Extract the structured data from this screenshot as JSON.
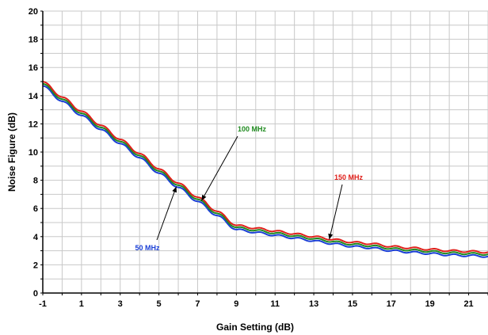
{
  "chart_data": {
    "type": "line",
    "title": "",
    "xlabel": "Gain Setting (dB)",
    "ylabel": "Noise Figure (dB)",
    "xlim": [
      -1,
      22
    ],
    "ylim": [
      0,
      20
    ],
    "x_ticks": [
      -1,
      1,
      3,
      5,
      7,
      9,
      11,
      13,
      15,
      17,
      19,
      21
    ],
    "y_ticks": [
      0,
      2,
      4,
      6,
      8,
      10,
      12,
      14,
      16,
      18,
      20
    ],
    "grid": true,
    "x": [
      -1,
      0,
      1,
      2,
      3,
      4,
      5,
      6,
      7,
      8,
      9,
      10,
      11,
      12,
      13,
      14,
      15,
      16,
      17,
      18,
      19,
      20,
      21,
      22
    ],
    "series": [
      {
        "name": "150 MHz",
        "color": "#e0201b",
        "values": [
          15.0,
          13.9,
          12.9,
          11.9,
          10.9,
          9.9,
          8.8,
          7.8,
          6.8,
          5.8,
          4.8,
          4.6,
          4.4,
          4.2,
          4.0,
          3.8,
          3.6,
          3.5,
          3.3,
          3.2,
          3.1,
          3.0,
          2.95,
          2.9
        ]
      },
      {
        "name": "100 MHz",
        "color": "#1f8a1f",
        "values": [
          14.85,
          13.75,
          12.75,
          11.75,
          10.75,
          9.75,
          8.65,
          7.65,
          6.65,
          5.65,
          4.65,
          4.45,
          4.25,
          4.05,
          3.85,
          3.65,
          3.45,
          3.35,
          3.15,
          3.05,
          2.95,
          2.85,
          2.8,
          2.75
        ]
      },
      {
        "name": "50 MHz",
        "color": "#1a3fd6",
        "values": [
          14.7,
          13.6,
          12.6,
          11.6,
          10.6,
          9.6,
          8.5,
          7.5,
          6.5,
          5.5,
          4.5,
          4.3,
          4.1,
          3.9,
          3.7,
          3.5,
          3.3,
          3.2,
          3.0,
          2.9,
          2.8,
          2.7,
          2.65,
          2.6
        ]
      }
    ],
    "annotations": [
      {
        "text": "100 MHz",
        "color": "#1f8a1f",
        "target_x": 7.2,
        "target_y": 6.55
      },
      {
        "text": "150 MHz",
        "color": "#e0201b",
        "target_x": 13.8,
        "target_y": 3.8
      },
      {
        "text": "50 MHz",
        "color": "#1a3fd6",
        "target_x": 5.9,
        "target_y": 7.55
      }
    ]
  }
}
